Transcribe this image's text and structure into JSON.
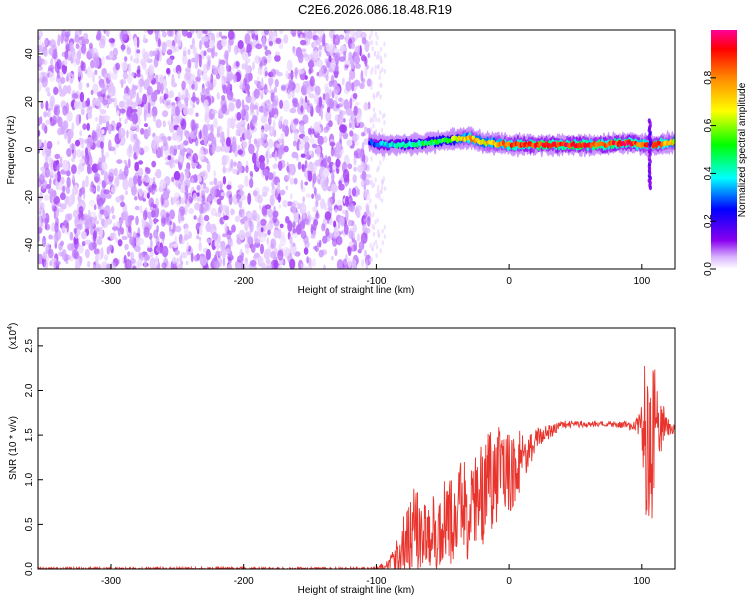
{
  "title": "C2E6.2026.086.18.48.R19",
  "chart_data": [
    {
      "type": "heatmap",
      "title": "C2E6.2026.086.18.48.R19",
      "xlabel": "Height of straight line (km)",
      "ylabel": "Frequency (Hz)",
      "xlim": [
        -355,
        125
      ],
      "ylim": [
        -50,
        50
      ],
      "x_ticks": [
        {
          "value": -300,
          "label": "-300"
        },
        {
          "value": -200,
          "label": "-200"
        },
        {
          "value": -100,
          "label": "-100"
        },
        {
          "value": 0,
          "label": "0"
        },
        {
          "value": 100,
          "label": "100"
        }
      ],
      "y_ticks": [
        {
          "value": -40,
          "label": "-40"
        },
        {
          "value": -20,
          "label": "-20"
        },
        {
          "value": 0,
          "label": "0"
        },
        {
          "value": 20,
          "label": "20"
        },
        {
          "value": 40,
          "label": "40"
        }
      ],
      "noise_region_x": [
        -355,
        -105
      ],
      "noise_amplitude_range": [
        0.05,
        0.2
      ],
      "signal_ridge": [
        {
          "x": -105,
          "freq": 3,
          "amp": 0.35
        },
        {
          "x": -95,
          "freq": 2,
          "amp": 0.45
        },
        {
          "x": -80,
          "freq": 2,
          "amp": 0.5
        },
        {
          "x": -60,
          "freq": 3,
          "amp": 0.55
        },
        {
          "x": -45,
          "freq": 4,
          "amp": 0.6
        },
        {
          "x": -30,
          "freq": 5,
          "amp": 0.8
        },
        {
          "x": -20,
          "freq": 3,
          "amp": 0.7
        },
        {
          "x": 0,
          "freq": 2,
          "amp": 0.85
        },
        {
          "x": 30,
          "freq": 2,
          "amp": 0.95
        },
        {
          "x": 70,
          "freq": 2,
          "amp": 0.9
        },
        {
          "x": 90,
          "freq": 3,
          "amp": 0.95
        },
        {
          "x": 100,
          "freq": 2,
          "amp": 0.85
        },
        {
          "x": 110,
          "freq": 2,
          "amp": 0.9
        },
        {
          "x": 125,
          "freq": 3,
          "amp": 0.7
        }
      ],
      "secondary_features": [
        {
          "x": 106,
          "freq_range": [
            -16,
            12
          ],
          "amp": 0.25
        }
      ]
    },
    {
      "type": "line",
      "xlabel": "Height of straight line (km)",
      "ylabel": "SNR (10 * v/v)",
      "ylabel_scale": "(x10",
      "ylabel_scale_exp": "4",
      "ylabel_scale_close": ")",
      "xlim": [
        -355,
        125
      ],
      "ylim": [
        0,
        2.7
      ],
      "x_ticks": [
        {
          "value": -300,
          "label": "-300"
        },
        {
          "value": -200,
          "label": "-200"
        },
        {
          "value": -100,
          "label": "-100"
        },
        {
          "value": 0,
          "label": "0"
        },
        {
          "value": 100,
          "label": "100"
        }
      ],
      "y_ticks": [
        {
          "value": 0.0,
          "label": "0.0"
        },
        {
          "value": 0.5,
          "label": "0.5"
        },
        {
          "value": 1.0,
          "label": "1.0"
        },
        {
          "value": 1.5,
          "label": "1.5"
        },
        {
          "value": 2.0,
          "label": "2.0"
        },
        {
          "value": 2.5,
          "label": "2.5"
        }
      ],
      "series": [
        {
          "name": "SNR",
          "color": "#e8342d",
          "envelope": [
            {
              "x": -355,
              "base": 0.0,
              "noise": 0.02
            },
            {
              "x": -100,
              "base": 0.0,
              "noise": 0.02
            },
            {
              "x": -90,
              "base": 0.05,
              "noise": 0.08
            },
            {
              "x": -80,
              "base": 0.2,
              "noise": 0.3
            },
            {
              "x": -70,
              "base": 0.35,
              "noise": 0.45
            },
            {
              "x": -60,
              "base": 0.3,
              "noise": 0.4
            },
            {
              "x": -45,
              "base": 0.45,
              "noise": 0.45
            },
            {
              "x": -30,
              "base": 0.6,
              "noise": 0.5
            },
            {
              "x": -15,
              "base": 0.85,
              "noise": 0.5
            },
            {
              "x": 0,
              "base": 1.05,
              "noise": 0.45
            },
            {
              "x": 10,
              "base": 1.2,
              "noise": 0.3
            },
            {
              "x": 20,
              "base": 1.45,
              "noise": 0.12
            },
            {
              "x": 40,
              "base": 1.62,
              "noise": 0.04
            },
            {
              "x": 70,
              "base": 1.63,
              "noise": 0.03
            },
            {
              "x": 95,
              "base": 1.6,
              "noise": 0.05
            },
            {
              "x": 100,
              "base": 1.55,
              "noise": 0.3
            },
            {
              "x": 104,
              "base": 1.3,
              "noise": 1.2
            },
            {
              "x": 108,
              "base": 1.4,
              "noise": 0.9
            },
            {
              "x": 112,
              "base": 1.55,
              "noise": 0.3
            },
            {
              "x": 125,
              "base": 1.58,
              "noise": 0.03
            }
          ]
        }
      ]
    }
  ],
  "colorbar": {
    "label": "Normalized spectral amplitude",
    "range": [
      0.0,
      1.0
    ],
    "ticks": [
      {
        "value": 0.0,
        "label": "0.0"
      },
      {
        "value": 0.2,
        "label": "0.2"
      },
      {
        "value": 0.4,
        "label": "0.4"
      },
      {
        "value": 0.6,
        "label": "0.6"
      },
      {
        "value": 0.8,
        "label": "0.8"
      }
    ],
    "colors": [
      "#ffffff",
      "#cc99ff",
      "#8800ee",
      "#0000ff",
      "#00ffff",
      "#00ff00",
      "#ffff00",
      "#ff8800",
      "#ff0000",
      "#ff0099"
    ]
  }
}
